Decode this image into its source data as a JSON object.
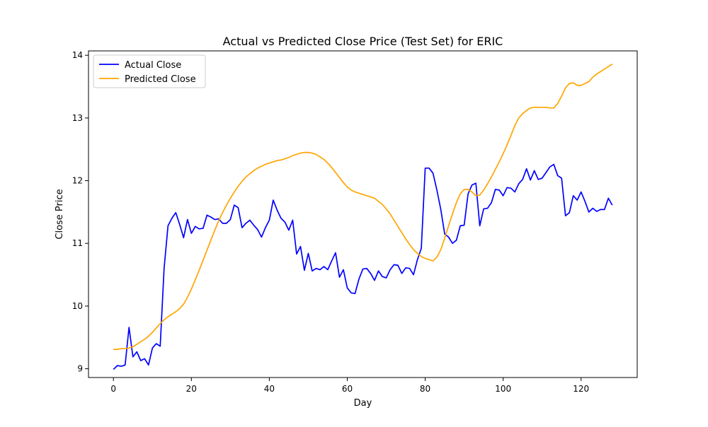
{
  "chart_data": {
    "type": "line",
    "title": "Actual vs Predicted Close Price (Test Set) for ERIC",
    "xlabel": "Day",
    "ylabel": "Close Price",
    "xlim": [
      -6.4,
      134.4
    ],
    "ylim": [
      8.86,
      14.07
    ],
    "xticks": [
      0,
      20,
      40,
      60,
      80,
      100,
      120
    ],
    "yticks": [
      9,
      10,
      11,
      12,
      13,
      14
    ],
    "grid": false,
    "legend_position": "top-left",
    "series": [
      {
        "name": "Actual Close",
        "color": "#0000ff",
        "x": [
          0,
          1,
          2,
          3,
          4,
          5,
          6,
          7,
          8,
          9,
          10,
          11,
          12,
          13,
          14,
          15,
          16,
          17,
          18,
          19,
          20,
          21,
          22,
          23,
          24,
          25,
          26,
          27,
          28,
          29,
          30,
          31,
          32,
          33,
          34,
          35,
          36,
          37,
          38,
          39,
          40,
          41,
          42,
          43,
          44,
          45,
          46,
          47,
          48,
          49,
          50,
          51,
          52,
          53,
          54,
          55,
          56,
          57,
          58,
          59,
          60,
          61,
          62,
          63,
          64,
          65,
          66,
          67,
          68,
          69,
          70,
          71,
          72,
          73,
          74,
          75,
          76,
          77,
          78,
          79,
          80,
          81,
          82,
          83,
          84,
          85,
          86,
          87,
          88,
          89,
          90,
          91,
          92,
          93,
          94,
          95,
          96,
          97,
          98,
          99,
          100,
          101,
          102,
          103,
          104,
          105,
          106,
          107,
          108,
          109,
          110,
          111,
          112,
          113,
          114,
          115,
          116,
          117,
          118,
          119,
          120,
          121,
          122,
          123,
          124,
          125,
          126,
          127,
          128
        ],
        "y": [
          8.99,
          9.05,
          9.04,
          9.06,
          9.66,
          9.19,
          9.27,
          9.13,
          9.16,
          9.06,
          9.33,
          9.4,
          9.36,
          10.6,
          11.28,
          11.4,
          11.49,
          11.3,
          11.09,
          11.38,
          11.16,
          11.27,
          11.23,
          11.24,
          11.45,
          11.42,
          11.38,
          11.39,
          11.32,
          11.32,
          11.38,
          11.61,
          11.57,
          11.25,
          11.32,
          11.37,
          11.29,
          11.22,
          11.1,
          11.25,
          11.37,
          11.69,
          11.53,
          11.4,
          11.34,
          11.21,
          11.37,
          10.83,
          10.95,
          10.57,
          10.84,
          10.56,
          10.6,
          10.58,
          10.63,
          10.58,
          10.72,
          10.85,
          10.46,
          10.58,
          10.29,
          10.21,
          10.2,
          10.43,
          10.59,
          10.6,
          10.52,
          10.41,
          10.56,
          10.47,
          10.45,
          10.58,
          10.66,
          10.65,
          10.52,
          10.61,
          10.6,
          10.5,
          10.74,
          10.92,
          12.2,
          12.2,
          12.12,
          11.85,
          11.54,
          11.15,
          11.1,
          11.0,
          11.05,
          11.28,
          11.29,
          11.79,
          11.93,
          11.96,
          11.28,
          11.55,
          11.56,
          11.65,
          11.86,
          11.85,
          11.76,
          11.89,
          11.88,
          11.82,
          11.95,
          12.02,
          12.19,
          12.01,
          12.16,
          12.02,
          12.04,
          12.13,
          12.22,
          12.26,
          12.08,
          12.04,
          11.44,
          11.49,
          11.76,
          11.69,
          11.82,
          11.67,
          11.5,
          11.56,
          11.51,
          11.54,
          11.54,
          11.72,
          11.61
        ]
      },
      {
        "name": "Predicted Close",
        "color": "#ffa500",
        "x": [
          0,
          1,
          2,
          3,
          4,
          5,
          6,
          7,
          8,
          9,
          10,
          11,
          12,
          13,
          14,
          15,
          16,
          17,
          18,
          19,
          20,
          21,
          22,
          23,
          24,
          25,
          26,
          27,
          28,
          29,
          30,
          31,
          32,
          33,
          34,
          35,
          36,
          37,
          38,
          39,
          40,
          41,
          42,
          43,
          44,
          45,
          46,
          47,
          48,
          49,
          50,
          51,
          52,
          53,
          54,
          55,
          56,
          57,
          58,
          59,
          60,
          61,
          62,
          63,
          64,
          65,
          66,
          67,
          68,
          69,
          70,
          71,
          72,
          73,
          74,
          75,
          76,
          77,
          78,
          79,
          80,
          81,
          82,
          83,
          84,
          85,
          86,
          87,
          88,
          89,
          90,
          91,
          92,
          93,
          94,
          95,
          96,
          97,
          98,
          99,
          100,
          101,
          102,
          103,
          104,
          105,
          106,
          107,
          108,
          109,
          110,
          111,
          112,
          113,
          114,
          115,
          116,
          117,
          118,
          119,
          120,
          121,
          122,
          123,
          124,
          125,
          126,
          127,
          128
        ],
        "y": [
          9.31,
          9.31,
          9.32,
          9.32,
          9.33,
          9.35,
          9.39,
          9.43,
          9.47,
          9.52,
          9.58,
          9.65,
          9.72,
          9.78,
          9.83,
          9.87,
          9.91,
          9.96,
          10.03,
          10.14,
          10.27,
          10.42,
          10.57,
          10.73,
          10.89,
          11.05,
          11.21,
          11.36,
          11.49,
          11.61,
          11.72,
          11.82,
          11.91,
          11.99,
          12.06,
          12.11,
          12.16,
          12.2,
          12.23,
          12.26,
          12.28,
          12.3,
          12.32,
          12.33,
          12.35,
          12.37,
          12.4,
          12.42,
          12.44,
          12.45,
          12.45,
          12.44,
          12.42,
          12.38,
          12.34,
          12.28,
          12.21,
          12.13,
          12.05,
          11.97,
          11.9,
          11.85,
          11.82,
          11.8,
          11.78,
          11.76,
          11.74,
          11.72,
          11.67,
          11.62,
          11.55,
          11.47,
          11.37,
          11.27,
          11.17,
          11.07,
          10.98,
          10.9,
          10.84,
          10.79,
          10.76,
          10.74,
          10.72,
          10.78,
          10.9,
          11.08,
          11.28,
          11.47,
          11.65,
          11.79,
          11.86,
          11.86,
          11.82,
          11.76,
          11.77,
          11.85,
          11.95,
          12.06,
          12.18,
          12.3,
          12.43,
          12.57,
          12.72,
          12.88,
          13.0,
          13.07,
          13.12,
          13.16,
          13.17,
          13.17,
          13.17,
          13.17,
          13.16,
          13.16,
          13.23,
          13.35,
          13.48,
          13.55,
          13.56,
          13.52,
          13.52,
          13.55,
          13.58,
          13.65,
          13.7,
          13.74,
          13.78,
          13.82,
          13.86
        ]
      }
    ]
  }
}
